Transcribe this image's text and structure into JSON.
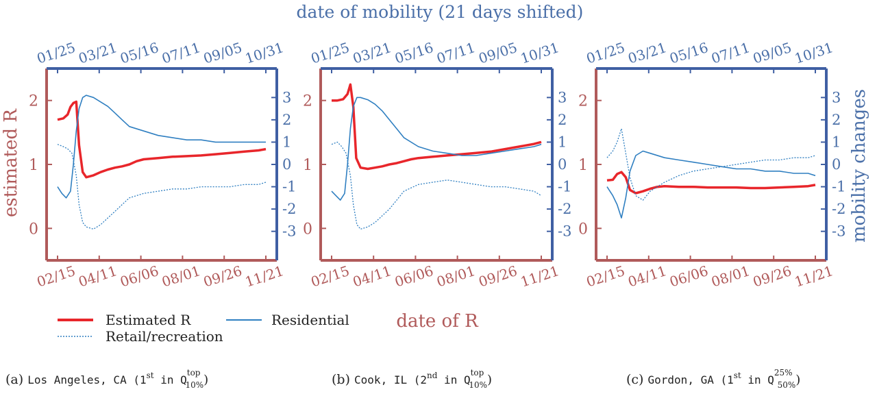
{
  "colors": {
    "estimated_r": "#e8262b",
    "mobility": "#2f7fc1",
    "left_axis": "#b05a5a",
    "right_axis": "#3f5fa3",
    "text_red": "#b05a5a",
    "text_blue": "#4a6fa8"
  },
  "figure": {
    "top_axis_label": "date of mobility (21 days shifted)",
    "bottom_axis_label": "date of R",
    "left_axis_label": "estimated R",
    "right_axis_label": "mobility changes"
  },
  "legend": {
    "estimated_r": "Estimated R",
    "residential": "Residential",
    "retail": "Retail/recreation"
  },
  "captions": [
    {
      "prefix": "(a) ",
      "text": "Los Angeles, CA (1",
      "ord": "st",
      "mid": " in Q",
      "sup": "top",
      "sub": "10%",
      "end": ")"
    },
    {
      "prefix": "(b) ",
      "text": "Cook, IL (2",
      "ord": "nd",
      "mid": " in Q",
      "sup": "top",
      "sub": "10%",
      "end": ")"
    },
    {
      "prefix": "(c) ",
      "text": "Gordon, GA (1",
      "ord": "st",
      "mid": " in Q",
      "sup": "25%",
      "sub": "50%",
      "end": ")"
    }
  ],
  "chart_data": [
    {
      "type": "line",
      "title": "Los Angeles, CA",
      "x_bottom_ticks": [
        "02/15",
        "04/11",
        "06/06",
        "08/01",
        "09/26",
        "11/21"
      ],
      "x_top_ticks": [
        "01/25",
        "03/21",
        "05/16",
        "07/11",
        "09/05",
        "10/31"
      ],
      "y_left_ticks": [
        0,
        1,
        2
      ],
      "y_left_range": [
        -0.5,
        2.5
      ],
      "y_right_ticks": [
        -3,
        -2,
        -1,
        0,
        1,
        2,
        3
      ],
      "y_right_range": [
        -4.3,
        4.3
      ],
      "day_range": [
        0,
        290
      ],
      "series": [
        {
          "name": "Estimated R",
          "axis": "left",
          "x": [
            0,
            8,
            14,
            18,
            22,
            26,
            30,
            35,
            40,
            50,
            60,
            70,
            80,
            90,
            100,
            110,
            120,
            140,
            160,
            180,
            200,
            220,
            240,
            260,
            280,
            290
          ],
          "values": [
            1.7,
            1.72,
            1.78,
            1.9,
            1.96,
            1.98,
            1.3,
            0.88,
            0.8,
            0.83,
            0.88,
            0.92,
            0.95,
            0.97,
            1.0,
            1.05,
            1.08,
            1.1,
            1.12,
            1.13,
            1.14,
            1.16,
            1.18,
            1.2,
            1.22,
            1.24
          ]
        },
        {
          "name": "Residential",
          "axis": "right",
          "x": [
            0,
            6,
            12,
            18,
            22,
            26,
            30,
            35,
            40,
            50,
            60,
            70,
            80,
            90,
            100,
            120,
            140,
            160,
            180,
            200,
            220,
            240,
            260,
            280,
            290
          ],
          "values": [
            -1.0,
            -1.3,
            -1.5,
            -1.2,
            0.0,
            1.5,
            2.5,
            3.0,
            3.1,
            3.0,
            2.8,
            2.6,
            2.3,
            2.0,
            1.7,
            1.5,
            1.3,
            1.2,
            1.1,
            1.1,
            1.0,
            1.0,
            1.0,
            1.0,
            1.0
          ]
        },
        {
          "name": "Retail/recreation",
          "axis": "right",
          "x": [
            0,
            8,
            14,
            20,
            26,
            30,
            35,
            40,
            50,
            60,
            70,
            80,
            90,
            100,
            120,
            140,
            160,
            180,
            200,
            220,
            240,
            260,
            280,
            290
          ],
          "values": [
            0.9,
            0.8,
            0.7,
            0.5,
            -0.5,
            -1.8,
            -2.6,
            -2.8,
            -2.9,
            -2.7,
            -2.4,
            -2.1,
            -1.8,
            -1.5,
            -1.3,
            -1.2,
            -1.1,
            -1.1,
            -1.0,
            -1.0,
            -1.0,
            -0.9,
            -0.9,
            -0.8
          ]
        }
      ]
    },
    {
      "type": "line",
      "title": "Cook, IL",
      "x_bottom_ticks": [
        "02/15",
        "04/11",
        "06/06",
        "08/01",
        "09/26",
        "11/21"
      ],
      "x_top_ticks": [
        "01/25",
        "03/21",
        "05/16",
        "07/11",
        "09/05",
        "10/31"
      ],
      "y_left_ticks": [
        0,
        1,
        2
      ],
      "y_left_range": [
        -0.5,
        2.5
      ],
      "y_right_ticks": [
        -3,
        -2,
        -1,
        0,
        1,
        2,
        3
      ],
      "y_right_range": [
        -4.3,
        4.3
      ],
      "day_range": [
        0,
        290
      ],
      "series": [
        {
          "name": "Estimated R",
          "axis": "left",
          "x": [
            0,
            8,
            16,
            22,
            26,
            30,
            34,
            40,
            50,
            60,
            70,
            80,
            90,
            100,
            110,
            120,
            140,
            160,
            180,
            200,
            220,
            240,
            260,
            280,
            290
          ],
          "values": [
            2.0,
            2.0,
            2.02,
            2.1,
            2.25,
            1.9,
            1.1,
            0.95,
            0.93,
            0.95,
            0.97,
            1.0,
            1.02,
            1.05,
            1.08,
            1.1,
            1.12,
            1.14,
            1.16,
            1.18,
            1.2,
            1.24,
            1.28,
            1.32,
            1.35
          ]
        },
        {
          "name": "Residential",
          "axis": "right",
          "x": [
            0,
            6,
            12,
            18,
            22,
            26,
            30,
            35,
            40,
            50,
            60,
            70,
            80,
            90,
            100,
            120,
            140,
            160,
            180,
            200,
            220,
            240,
            260,
            280,
            290
          ],
          "values": [
            -1.2,
            -1.4,
            -1.6,
            -1.3,
            0.0,
            1.6,
            2.6,
            3.0,
            3.0,
            2.9,
            2.7,
            2.4,
            2.0,
            1.6,
            1.2,
            0.8,
            0.6,
            0.5,
            0.4,
            0.4,
            0.5,
            0.6,
            0.7,
            0.8,
            0.9
          ]
        },
        {
          "name": "Retail/recreation",
          "axis": "right",
          "x": [
            0,
            8,
            14,
            20,
            26,
            30,
            35,
            40,
            50,
            60,
            70,
            80,
            90,
            100,
            120,
            140,
            160,
            180,
            200,
            220,
            240,
            260,
            280,
            290
          ],
          "values": [
            0.9,
            1.0,
            0.8,
            0.5,
            -0.5,
            -1.8,
            -2.7,
            -2.9,
            -2.8,
            -2.6,
            -2.3,
            -2.0,
            -1.6,
            -1.2,
            -0.9,
            -0.8,
            -0.7,
            -0.8,
            -0.9,
            -1.0,
            -1.0,
            -1.1,
            -1.2,
            -1.4
          ]
        }
      ]
    },
    {
      "type": "line",
      "title": "Gordon, GA",
      "x_bottom_ticks": [
        "02/15",
        "04/11",
        "06/06",
        "08/01",
        "09/26",
        "11/21"
      ],
      "x_top_ticks": [
        "01/25",
        "03/21",
        "05/16",
        "07/11",
        "09/05",
        "10/31"
      ],
      "y_left_ticks": [
        0,
        1,
        2
      ],
      "y_left_range": [
        -0.5,
        2.5
      ],
      "y_right_ticks": [
        -3,
        -2,
        -1,
        0,
        1,
        2,
        3
      ],
      "y_right_range": [
        -4.3,
        4.3
      ],
      "day_range": [
        0,
        290
      ],
      "series": [
        {
          "name": "Estimated R",
          "axis": "left",
          "x": [
            0,
            8,
            14,
            20,
            26,
            32,
            40,
            50,
            60,
            70,
            80,
            100,
            120,
            140,
            160,
            180,
            200,
            220,
            240,
            260,
            280,
            290
          ],
          "values": [
            0.75,
            0.76,
            0.85,
            0.88,
            0.8,
            0.6,
            0.55,
            0.58,
            0.62,
            0.65,
            0.66,
            0.65,
            0.65,
            0.64,
            0.64,
            0.64,
            0.63,
            0.63,
            0.64,
            0.65,
            0.66,
            0.68
          ]
        },
        {
          "name": "Residential",
          "axis": "right",
          "x": [
            0,
            8,
            14,
            20,
            26,
            32,
            40,
            50,
            60,
            80,
            100,
            120,
            140,
            160,
            180,
            200,
            220,
            240,
            260,
            280,
            290
          ],
          "values": [
            -1.0,
            -1.4,
            -1.8,
            -2.4,
            -1.5,
            -0.3,
            0.4,
            0.6,
            0.5,
            0.3,
            0.2,
            0.1,
            0.0,
            -0.1,
            -0.2,
            -0.2,
            -0.3,
            -0.3,
            -0.4,
            -0.4,
            -0.5
          ]
        },
        {
          "name": "Retail/recreation",
          "axis": "right",
          "x": [
            0,
            8,
            14,
            20,
            26,
            32,
            40,
            50,
            60,
            80,
            100,
            120,
            140,
            160,
            180,
            200,
            220,
            240,
            260,
            280,
            290
          ],
          "values": [
            0.3,
            0.6,
            1.0,
            1.6,
            0.5,
            -0.6,
            -1.4,
            -1.6,
            -1.2,
            -0.8,
            -0.5,
            -0.3,
            -0.2,
            -0.1,
            0.0,
            0.1,
            0.2,
            0.2,
            0.3,
            0.3,
            0.4
          ]
        }
      ]
    }
  ]
}
